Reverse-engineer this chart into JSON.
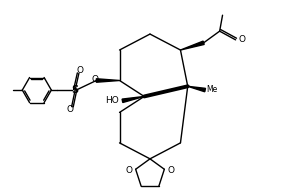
{
  "bg_color": "#ffffff",
  "lw": 1.0,
  "blw": 2.8,
  "figsize": [
    3.0,
    1.9
  ],
  "dpi": 100,
  "xlim": [
    0.0,
    10.0
  ],
  "ylim": [
    0.0,
    6.5
  ]
}
